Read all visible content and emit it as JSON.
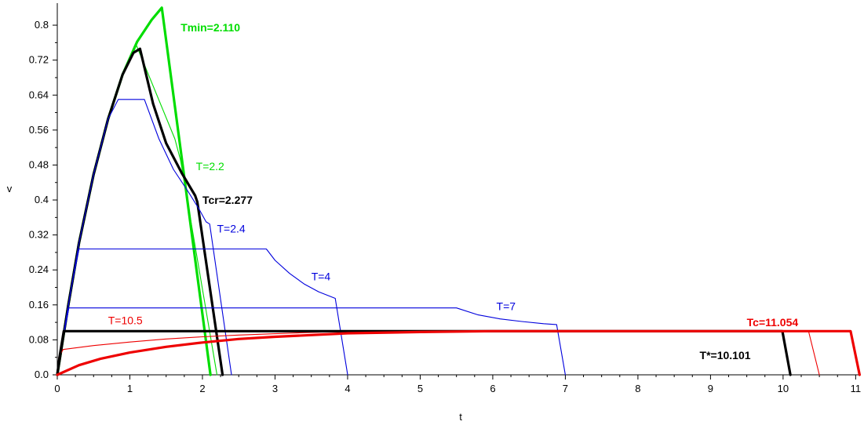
{
  "chart_data": {
    "type": "line",
    "title": "",
    "xlabel": "t",
    "ylabel": "v",
    "xlim": [
      0,
      11.05
    ],
    "ylim": [
      0,
      0.845
    ],
    "x_ticks": [
      "0",
      "1",
      "2",
      "3",
      "4",
      "5",
      "6",
      "7",
      "8",
      "9",
      "10",
      "11"
    ],
    "y_ticks": [
      "0.0",
      "0.08",
      "0.16",
      "0.24",
      "0.32",
      "0.4",
      "0.48",
      "0.56",
      "0.64",
      "0.72",
      "0.8"
    ],
    "grid": false,
    "legend": "none",
    "series": [
      {
        "name": "Tmin=2.110",
        "color": "#00dd00",
        "weight": "bold",
        "points": [
          [
            0,
            0
          ],
          [
            0.15,
            0.158
          ],
          [
            0.3,
            0.302
          ],
          [
            0.5,
            0.458
          ],
          [
            0.7,
            0.585
          ],
          [
            0.9,
            0.687
          ],
          [
            1.1,
            0.762
          ],
          [
            1.3,
            0.812
          ],
          [
            1.44,
            0.84
          ],
          [
            2.11,
            0
          ]
        ]
      },
      {
        "name": "T=2.2",
        "color": "#00dd00",
        "weight": "thin",
        "points": [
          [
            0,
            0
          ],
          [
            0.15,
            0.158
          ],
          [
            0.3,
            0.302
          ],
          [
            0.5,
            0.458
          ],
          [
            0.7,
            0.585
          ],
          [
            0.9,
            0.687
          ],
          [
            1.08,
            0.758
          ],
          [
            1.62,
            0.54
          ],
          [
            1.7,
            0.49
          ],
          [
            2.2,
            0
          ]
        ]
      },
      {
        "name": "Tcr=2.277",
        "color": "#000000",
        "weight": "bold",
        "points": [
          [
            0,
            0
          ],
          [
            0.15,
            0.158
          ],
          [
            0.3,
            0.302
          ],
          [
            0.5,
            0.458
          ],
          [
            0.7,
            0.585
          ],
          [
            0.9,
            0.687
          ],
          [
            1.05,
            0.737
          ],
          [
            1.14,
            0.746
          ],
          [
            1.32,
            0.62
          ],
          [
            1.5,
            0.53
          ],
          [
            1.72,
            0.46
          ],
          [
            1.9,
            0.41
          ],
          [
            1.93,
            0.395
          ],
          [
            2.277,
            0
          ]
        ]
      },
      {
        "name": "T=2.4",
        "color": "#0000dd",
        "weight": "thin",
        "points": [
          [
            0,
            0
          ],
          [
            0.15,
            0.158
          ],
          [
            0.3,
            0.302
          ],
          [
            0.5,
            0.458
          ],
          [
            0.7,
            0.585
          ],
          [
            0.84,
            0.63
          ],
          [
            1.2,
            0.63
          ],
          [
            1.4,
            0.54
          ],
          [
            1.6,
            0.47
          ],
          [
            1.8,
            0.42
          ],
          [
            1.95,
            0.38
          ],
          [
            2.05,
            0.35
          ],
          [
            2.1,
            0.345
          ],
          [
            2.4,
            0
          ]
        ]
      },
      {
        "name": "T=4",
        "color": "#0000dd",
        "weight": "thin",
        "points": [
          [
            0,
            0
          ],
          [
            0.1,
            0.105
          ],
          [
            0.2,
            0.205
          ],
          [
            0.3,
            0.288
          ],
          [
            2.88,
            0.288
          ],
          [
            3.0,
            0.262
          ],
          [
            3.2,
            0.232
          ],
          [
            3.4,
            0.208
          ],
          [
            3.6,
            0.19
          ],
          [
            3.83,
            0.175
          ],
          [
            4.0,
            0
          ]
        ]
      },
      {
        "name": "T=7",
        "color": "#0000dd",
        "weight": "thin",
        "points": [
          [
            0,
            0
          ],
          [
            0.05,
            0.05
          ],
          [
            0.1,
            0.1
          ],
          [
            0.16,
            0.153
          ],
          [
            5.5,
            0.153
          ],
          [
            5.8,
            0.137
          ],
          [
            6.1,
            0.128
          ],
          [
            6.4,
            0.122
          ],
          [
            6.7,
            0.117
          ],
          [
            6.88,
            0.115
          ],
          [
            7.0,
            0
          ]
        ]
      },
      {
        "name": "T=10.5",
        "color": "#ee0000",
        "weight": "thin",
        "points": [
          [
            0,
            0
          ],
          [
            0.02,
            0.04
          ],
          [
            0.08,
            0.058
          ],
          [
            0.5,
            0.067
          ],
          [
            1,
            0.075
          ],
          [
            1.5,
            0.082
          ],
          [
            2,
            0.087
          ],
          [
            2.5,
            0.091
          ],
          [
            3,
            0.094
          ],
          [
            3.5,
            0.097
          ],
          [
            4,
            0.099
          ],
          [
            10.35,
            0.1
          ],
          [
            10.5,
            0
          ]
        ]
      },
      {
        "name": "T*=10.101",
        "color": "#000000",
        "weight": "bold",
        "points": [
          [
            0,
            0
          ],
          [
            0.03,
            0.04
          ],
          [
            0.09,
            0.1
          ],
          [
            3.13,
            0.1
          ],
          [
            9.99,
            0.1
          ],
          [
            10.101,
            0
          ]
        ]
      },
      {
        "name": "Tc=11.054",
        "color": "#ee0000",
        "weight": "bold",
        "points": [
          [
            0,
            0
          ],
          [
            0.3,
            0.022
          ],
          [
            0.6,
            0.037
          ],
          [
            1,
            0.051
          ],
          [
            1.5,
            0.064
          ],
          [
            2,
            0.074
          ],
          [
            2.5,
            0.082
          ],
          [
            3,
            0.087
          ],
          [
            3.5,
            0.091
          ],
          [
            4,
            0.095
          ],
          [
            5,
            0.098
          ],
          [
            6,
            0.1
          ],
          [
            10.93,
            0.1
          ],
          [
            11.054,
            0
          ]
        ]
      }
    ],
    "annotations": [
      {
        "text": "Tmin=2.110",
        "x": 1.7,
        "y": 0.795,
        "color": "#00dd00",
        "bold": true
      },
      {
        "text": "T=2.2",
        "x": 1.91,
        "y": 0.477,
        "color": "#00dd00",
        "bold": false
      },
      {
        "text": "Tcr=2.277",
        "x": 2.0,
        "y": 0.4,
        "color": "#000000",
        "bold": true
      },
      {
        "text": "T=2.4",
        "x": 2.2,
        "y": 0.335,
        "color": "#0000dd",
        "bold": false
      },
      {
        "text": "T=4",
        "x": 3.5,
        "y": 0.225,
        "color": "#0000dd",
        "bold": false
      },
      {
        "text": "T=7",
        "x": 6.05,
        "y": 0.157,
        "color": "#0000dd",
        "bold": false
      },
      {
        "text": "T=10.5",
        "x": 0.7,
        "y": 0.125,
        "color": "#ee0000",
        "bold": false
      },
      {
        "text": "Tc=11.054",
        "x": 9.5,
        "y": 0.12,
        "color": "#ee0000",
        "bold": true
      },
      {
        "text": "T*=10.101",
        "x": 8.85,
        "y": 0.045,
        "color": "#000000",
        "bold": true
      }
    ]
  }
}
